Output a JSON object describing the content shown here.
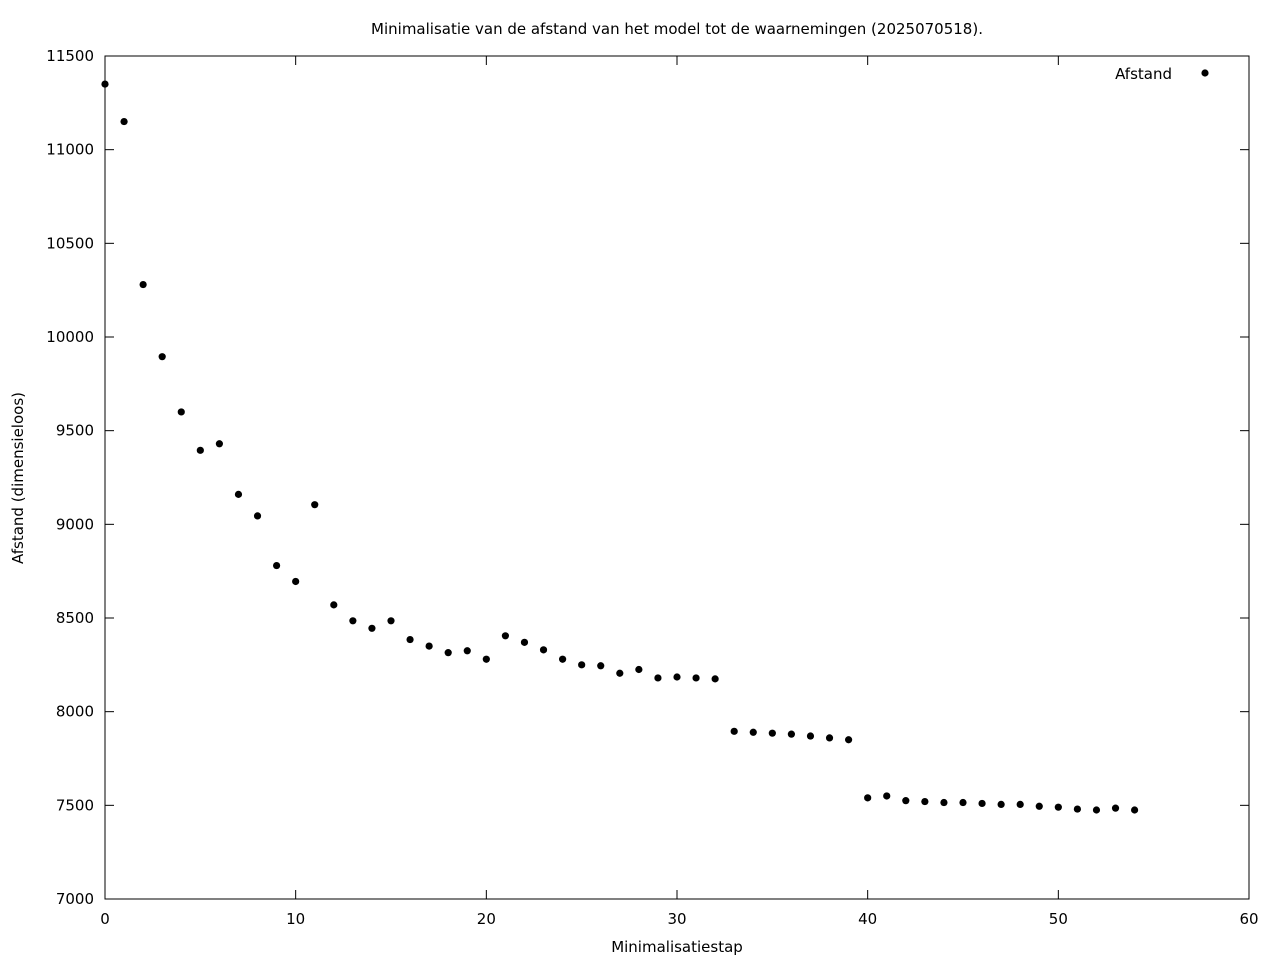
{
  "chart_data": {
    "type": "scatter",
    "title": "Minimalisatie van de afstand van het model tot de waarnemingen (2025070518).",
    "xlabel": "Minimalisatiestap",
    "ylabel": "Afstand (dimensieloos)",
    "xlim": [
      0,
      60
    ],
    "ylim": [
      7000,
      11500
    ],
    "x_ticks": [
      "0",
      "10",
      "20",
      "30",
      "40",
      "50",
      "60"
    ],
    "y_ticks": [
      "7000",
      "7500",
      "8000",
      "8500",
      "9000",
      "9500",
      "10000",
      "10500",
      "11000",
      "11500"
    ],
    "grid": false,
    "legend_position": "top-right",
    "point_color": "#000000",
    "series": [
      {
        "name": "Afstand",
        "x": [
          0,
          1,
          2,
          3,
          4,
          5,
          6,
          7,
          8,
          9,
          10,
          11,
          12,
          13,
          14,
          15,
          16,
          17,
          18,
          19,
          20,
          21,
          22,
          23,
          24,
          25,
          26,
          27,
          28,
          29,
          30,
          31,
          32,
          33,
          34,
          35,
          36,
          37,
          38,
          39,
          40,
          41,
          42,
          43,
          44,
          45,
          46,
          47,
          48,
          49,
          50,
          51,
          52,
          53,
          54
        ],
        "y": [
          11350,
          11150,
          10280,
          9895,
          9600,
          9395,
          9430,
          9160,
          9045,
          8780,
          8695,
          9105,
          8570,
          8485,
          8445,
          8485,
          8385,
          8350,
          8315,
          8325,
          8280,
          8405,
          8370,
          8330,
          8280,
          8250,
          8245,
          8205,
          8225,
          8180,
          8185,
          8180,
          8175,
          7895,
          7890,
          7885,
          7880,
          7870,
          7860,
          7850,
          7540,
          7550,
          7525,
          7520,
          7515,
          7515,
          7510,
          7505,
          7505,
          7495,
          7490,
          7480,
          7475,
          7485,
          7475
        ]
      }
    ]
  }
}
